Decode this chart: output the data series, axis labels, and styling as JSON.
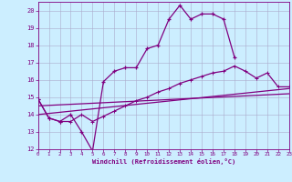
{
  "xlabel": "Windchill (Refroidissement éolien,°C)",
  "bg_color": "#cceeff",
  "line_color": "#800080",
  "grid_color": "#aaaacc",
  "xlim": [
    0,
    23
  ],
  "ylim": [
    12,
    20.5
  ],
  "xticks": [
    0,
    1,
    2,
    3,
    4,
    5,
    6,
    7,
    8,
    9,
    10,
    11,
    12,
    13,
    14,
    15,
    16,
    17,
    18,
    19,
    20,
    21,
    22,
    23
  ],
  "yticks": [
    12,
    13,
    14,
    15,
    16,
    17,
    18,
    19,
    20
  ],
  "series": [
    {
      "x": [
        0,
        1,
        2,
        3,
        4,
        5,
        6,
        7,
        8,
        9,
        10,
        11,
        12,
        13,
        14,
        15,
        16,
        17,
        18
      ],
      "y": [
        14.9,
        13.8,
        13.6,
        14.0,
        13.0,
        11.9,
        15.9,
        16.5,
        16.7,
        16.7,
        17.8,
        18.0,
        19.5,
        20.3,
        19.5,
        19.8,
        19.8,
        19.5,
        17.3
      ]
    },
    {
      "x": [
        0,
        1,
        2,
        3,
        4,
        5,
        6,
        7,
        8,
        9,
        10,
        11,
        12,
        13,
        14,
        15,
        16,
        17,
        18,
        19,
        20,
        21,
        22,
        23
      ],
      "y": [
        14.9,
        13.8,
        13.6,
        13.6,
        14.0,
        13.6,
        13.9,
        14.2,
        14.5,
        14.8,
        15.0,
        15.3,
        15.5,
        15.8,
        16.0,
        16.2,
        16.4,
        16.5,
        16.8,
        16.5,
        16.1,
        16.4,
        15.6,
        15.6
      ]
    },
    {
      "x": [
        0,
        23
      ],
      "y": [
        14.0,
        15.5
      ]
    },
    {
      "x": [
        0,
        23
      ],
      "y": [
        14.5,
        15.2
      ]
    }
  ]
}
